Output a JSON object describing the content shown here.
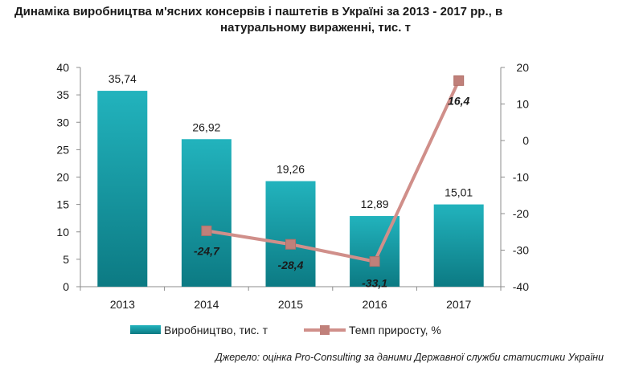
{
  "chart_data": {
    "type": "bar",
    "title_line1": "Динаміка виробництва м'ясних консервів і паштетів в Україні за 2013 - 2017 рр., в",
    "title_line2": "натуральному вираженні, тис. т",
    "categories": [
      "2013",
      "2014",
      "2015",
      "2016",
      "2017"
    ],
    "series": [
      {
        "name": "Виробництво, тис. т",
        "type": "bar",
        "axis": "left",
        "values": [
          35.74,
          26.92,
          19.26,
          12.89,
          15.01
        ],
        "labels": [
          "35,74",
          "26,92",
          "19,26",
          "12,89",
          "15,01"
        ]
      },
      {
        "name": "Темп приросту, %",
        "type": "line",
        "axis": "right",
        "values": [
          null,
          -24.7,
          -28.4,
          -33.1,
          16.4
        ],
        "labels": [
          "",
          "-24,7",
          "-28,4",
          "-33,1",
          "16,4"
        ]
      }
    ],
    "y_left": {
      "min": 0,
      "max": 40,
      "step": 5,
      "ticks": [
        "0",
        "5",
        "10",
        "15",
        "20",
        "25",
        "30",
        "35",
        "40"
      ]
    },
    "y_right": {
      "min": -40,
      "max": 20,
      "step": 10,
      "ticks": [
        "-40",
        "-30",
        "-20",
        "-10",
        "0",
        "10",
        "20"
      ]
    },
    "grid": false,
    "legend_position": "bottom",
    "colors": {
      "bar": "#1aa3ad",
      "bar_dark": "#0d7f88",
      "line": "#d08f8a",
      "marker": "#c0807a"
    }
  },
  "source": "Джерело: оцінка Pro-Consulting за даними Державної служби статистики України"
}
